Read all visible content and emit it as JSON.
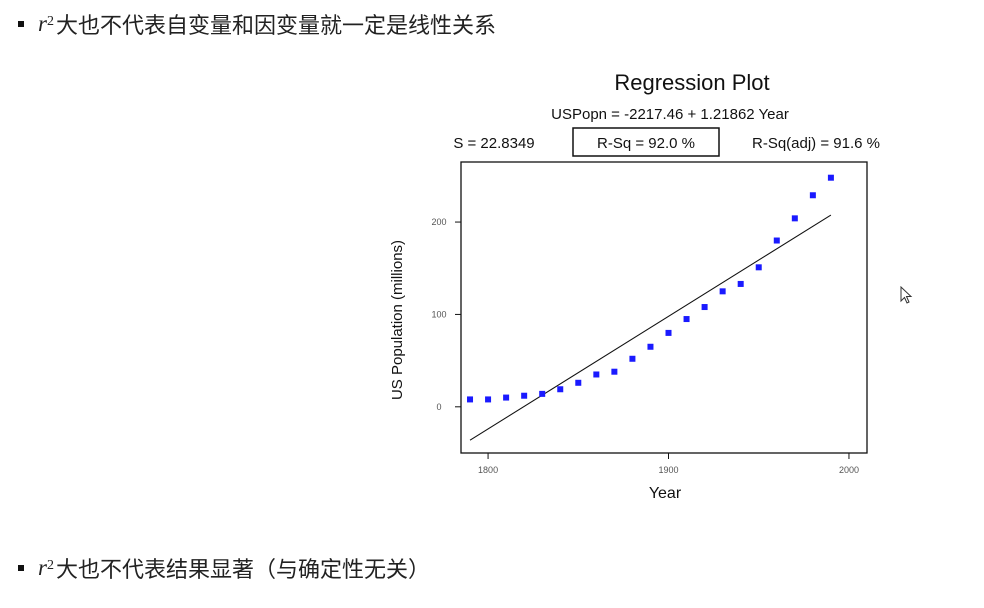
{
  "bullets": [
    {
      "var": "r",
      "exp": "2",
      "text": "大也不代表自变量和因变量就一定是线性关系"
    },
    {
      "var": "r",
      "exp": "2",
      "text": "大也不代表结果显著（与确定性无关）"
    }
  ],
  "chart_data": {
    "type": "scatter",
    "title": "Regression Plot",
    "equation": "USPopn = -2217.46 + 1.21862  Year",
    "stats": {
      "s": "S = 22.8349",
      "rsq": "R-Sq = 92.0  %",
      "rsq_adj": "R-Sq(adj) = 91.6  %"
    },
    "xlabel": "Year",
    "ylabel": "US Population (millions)",
    "x_ticks": [
      1800,
      1900,
      2000
    ],
    "y_ticks": [
      0,
      100,
      200
    ],
    "xlim": [
      1785,
      2010
    ],
    "ylim": [
      -50,
      265
    ],
    "grid": false,
    "point_color": "#1a1aff",
    "line_color": "#111111",
    "fit_line": {
      "intercept": -2217.46,
      "slope": 1.21862,
      "x_start": 1790,
      "x_end": 1990
    },
    "x": [
      1790,
      1800,
      1810,
      1820,
      1830,
      1840,
      1850,
      1860,
      1870,
      1880,
      1890,
      1900,
      1910,
      1920,
      1930,
      1940,
      1950,
      1960,
      1970,
      1980,
      1990
    ],
    "y": [
      8,
      8,
      10,
      12,
      14,
      19,
      26,
      35,
      38,
      52,
      65,
      80,
      95,
      108,
      125,
      133,
      151,
      180,
      204,
      229,
      248
    ]
  }
}
